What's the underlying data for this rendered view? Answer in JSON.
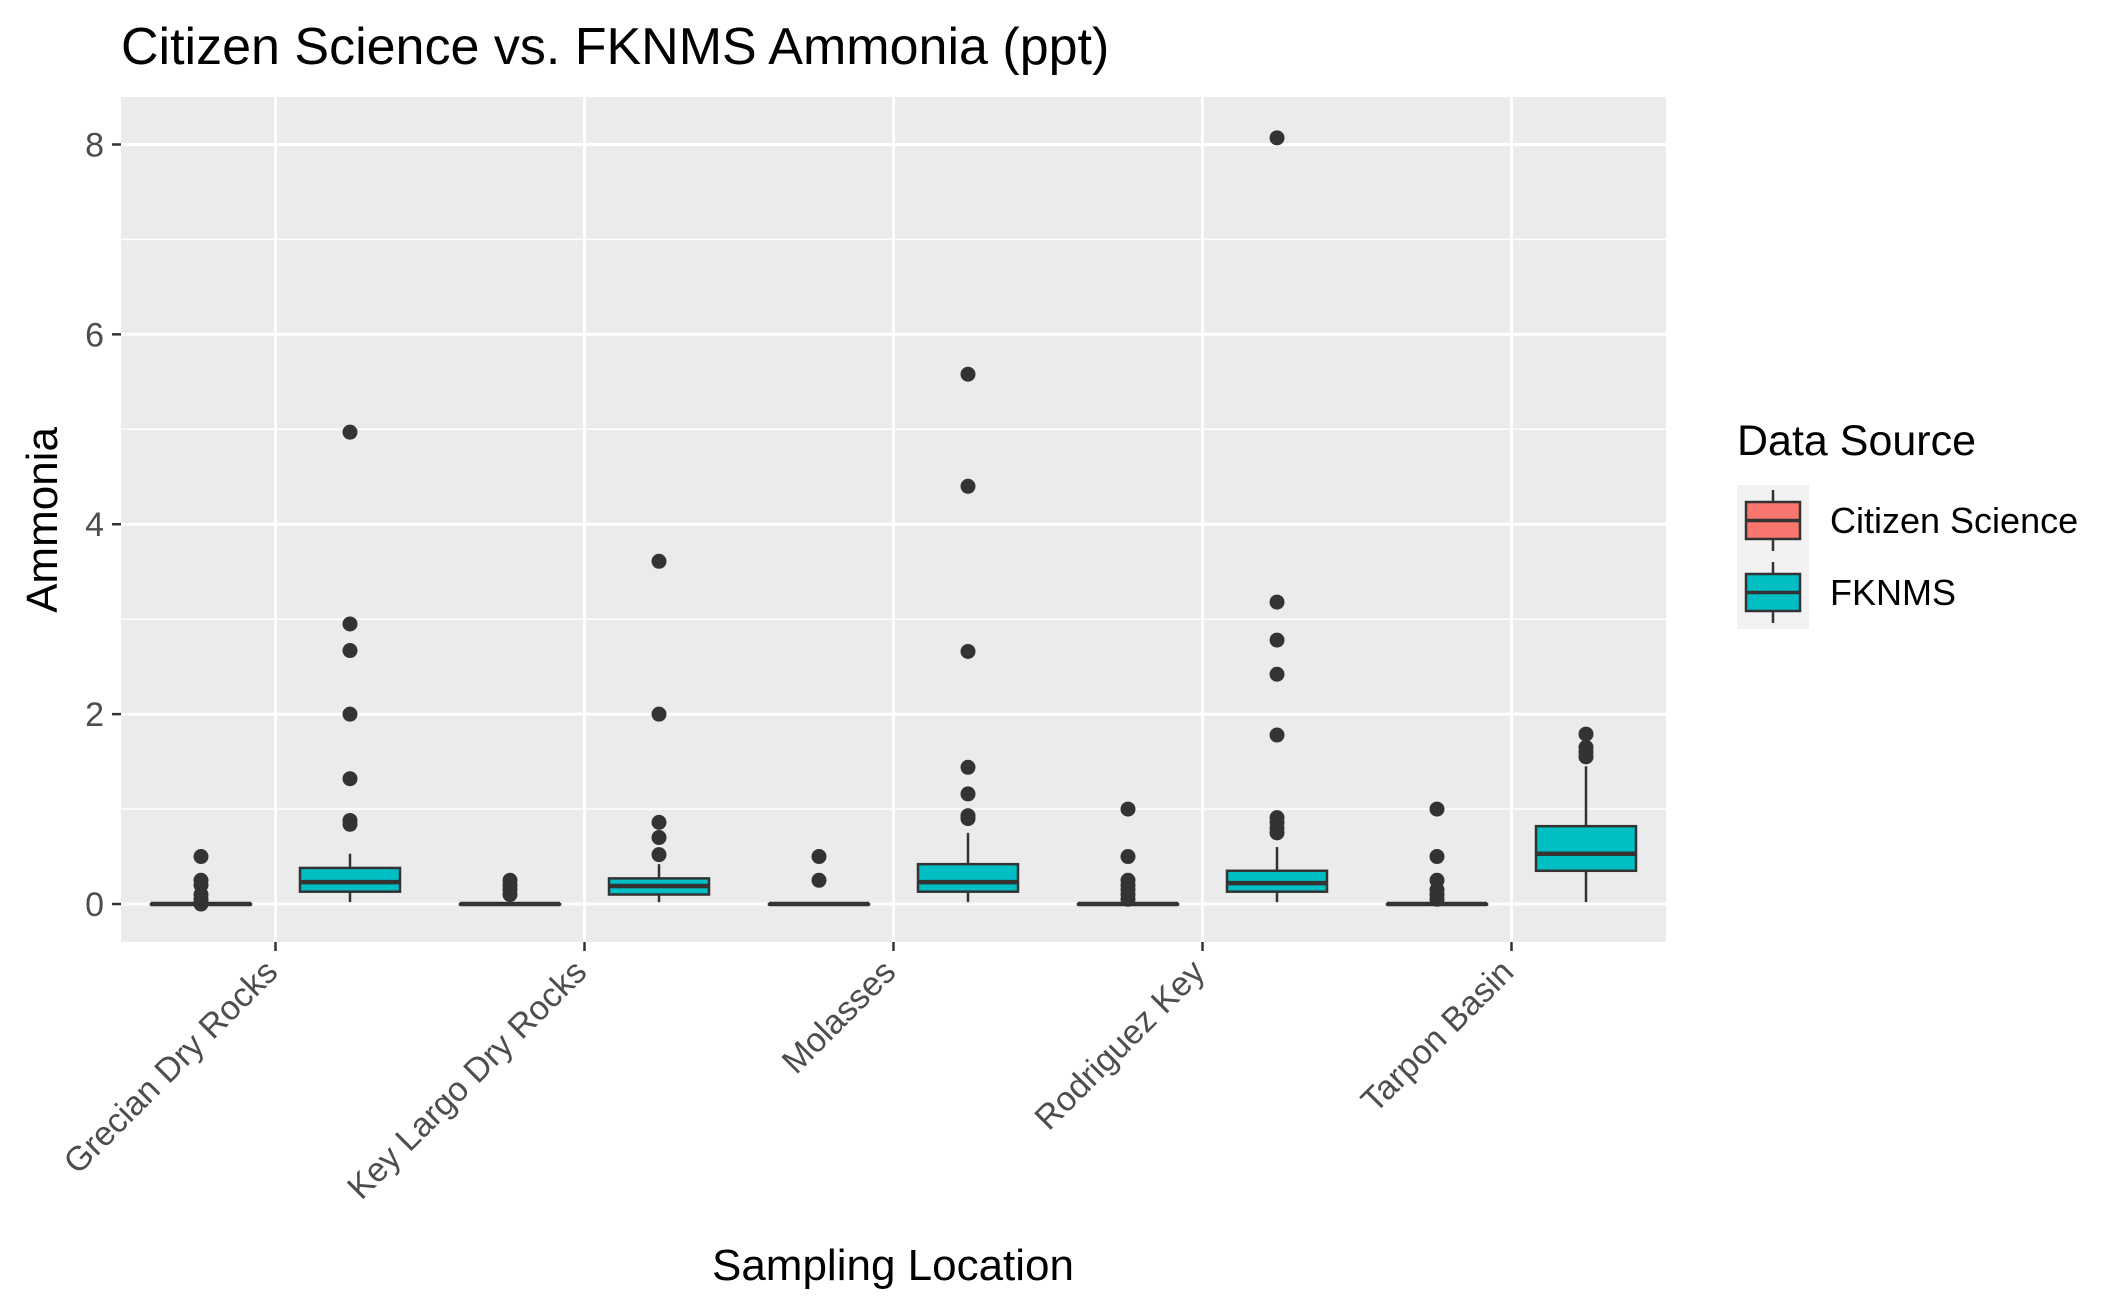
{
  "chart_data": {
    "type": "boxplot",
    "title": "Citizen Science vs. FKNMS Ammonia (ppt)",
    "xlabel": "Sampling Location",
    "ylabel": "Ammonia",
    "ylim": [
      -0.4,
      8.5
    ],
    "yticks": [
      0,
      2,
      4,
      6,
      8
    ],
    "grid": true,
    "legend": {
      "title": "Data Source",
      "position": "right",
      "entries": [
        {
          "label": "Citizen Science",
          "color": "#F8766D"
        },
        {
          "label": "FKNMS",
          "color": "#00BFC4"
        }
      ]
    },
    "categories": [
      "Grecian Dry Rocks",
      "Key Largo Dry Rocks",
      "Molasses",
      "Rodriguez Key",
      "Tarpon Basin"
    ],
    "series": [
      {
        "name": "Citizen Science",
        "color": "#F8766D",
        "boxes": [
          {
            "min": 0,
            "q1": 0,
            "median": 0,
            "q3": 0,
            "max": 0,
            "outliers": [
              0.5,
              0.25,
              0.2,
              0.1,
              0.05,
              0.02,
              0
            ]
          },
          {
            "min": 0,
            "q1": 0,
            "median": 0,
            "q3": 0,
            "max": 0,
            "outliers": [
              0.25,
              0.2,
              0.15,
              0.1
            ]
          },
          {
            "min": 0,
            "q1": 0,
            "median": 0,
            "q3": 0,
            "max": 0,
            "outliers": [
              0.5,
              0.25
            ]
          },
          {
            "min": 0,
            "q1": 0,
            "median": 0,
            "q3": 0,
            "max": 0,
            "outliers": [
              1.0,
              0.5,
              0.25,
              0.2,
              0.15,
              0.1,
              0.05
            ]
          },
          {
            "min": 0,
            "q1": 0,
            "median": 0,
            "q3": 0,
            "max": 0,
            "outliers": [
              1.0,
              0.5,
              0.25,
              0.15,
              0.1,
              0.05
            ]
          }
        ]
      },
      {
        "name": "FKNMS",
        "color": "#00BFC4",
        "boxes": [
          {
            "min": 0.02,
            "q1": 0.13,
            "median": 0.23,
            "q3": 0.38,
            "max": 0.53,
            "outliers": [
              4.97,
              2.95,
              2.67,
              2.0,
              1.32,
              0.88,
              0.84
            ]
          },
          {
            "min": 0.02,
            "q1": 0.1,
            "median": 0.19,
            "q3": 0.27,
            "max": 0.42,
            "outliers": [
              3.61,
              2.0,
              0.86,
              0.7,
              0.52
            ]
          },
          {
            "min": 0.02,
            "q1": 0.13,
            "median": 0.23,
            "q3": 0.42,
            "max": 0.75,
            "outliers": [
              5.58,
              4.4,
              2.66,
              1.44,
              1.16,
              0.93,
              0.9
            ]
          },
          {
            "min": 0.02,
            "q1": 0.13,
            "median": 0.22,
            "q3": 0.35,
            "max": 0.6,
            "outliers": [
              8.07,
              3.18,
              2.78,
              2.42,
              1.78,
              0.91,
              0.86,
              0.8,
              0.75
            ]
          },
          {
            "min": 0.02,
            "q1": 0.35,
            "median": 0.53,
            "q3": 0.82,
            "max": 1.45,
            "outliers": [
              1.79,
              1.65,
              1.6,
              1.55
            ]
          }
        ]
      }
    ]
  }
}
